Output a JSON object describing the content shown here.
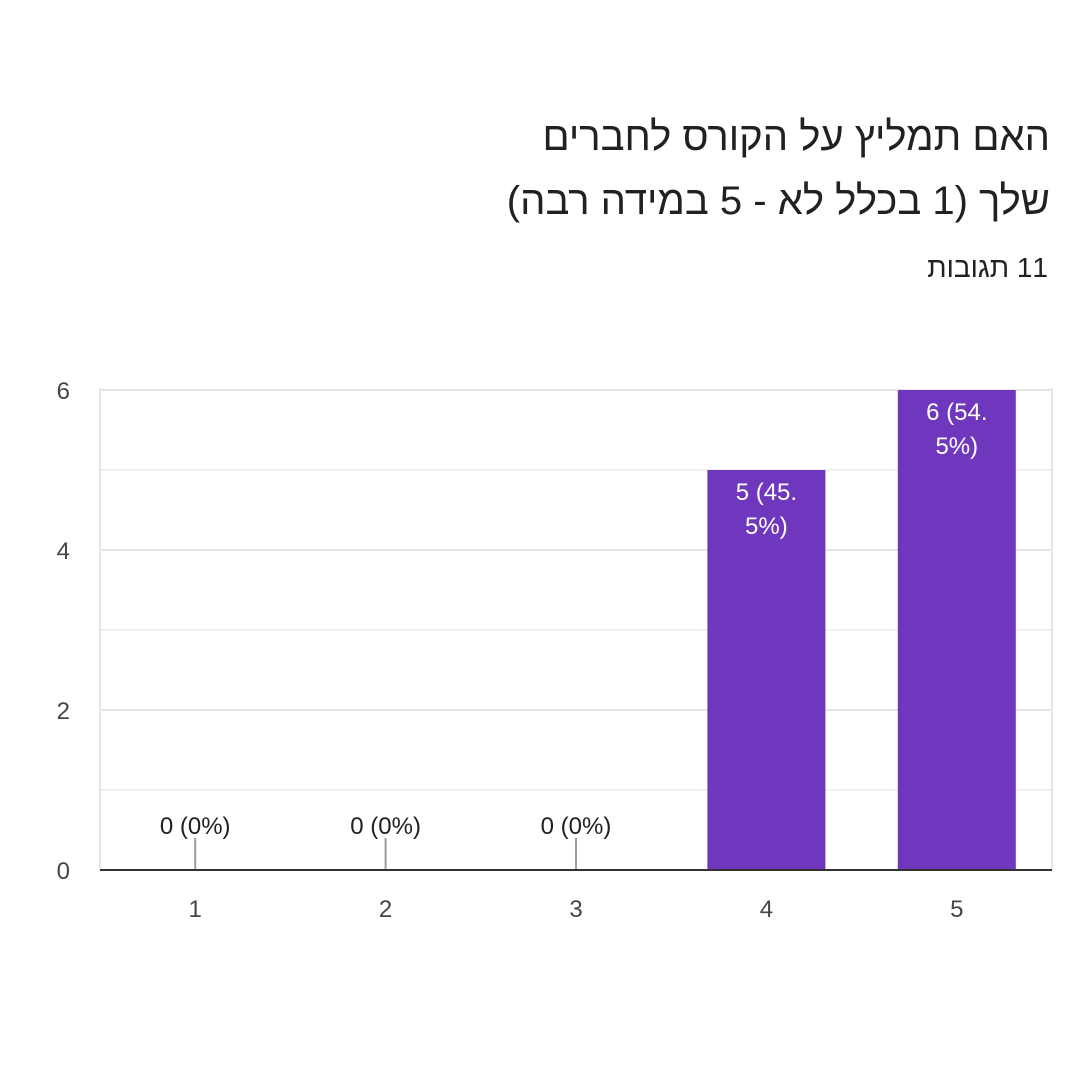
{
  "chart_data": {
    "type": "bar",
    "title_lines": [
      "האם תמליץ על הקורס לחברים",
      "שלך (1 בכלל לא - 5 במידה רבה)"
    ],
    "subtitle": "11 תגובות",
    "categories": [
      "1",
      "2",
      "3",
      "4",
      "5"
    ],
    "values": [
      0,
      0,
      0,
      5,
      6
    ],
    "data_labels": [
      "0 (0%)",
      "0 (0%)",
      "0 (0%)",
      "5 (45.5%)",
      "6 (54.5%)"
    ],
    "y_ticks": [
      "0",
      "2",
      "4",
      "6"
    ],
    "ylim": [
      0,
      6
    ],
    "grid": true,
    "colors": {
      "bar": "#6f37be",
      "grid_major": "#e6e6e6",
      "grid_minor": "#f1f1f1",
      "axis": "#333333",
      "zero_stub": "#9e9e9e"
    }
  }
}
